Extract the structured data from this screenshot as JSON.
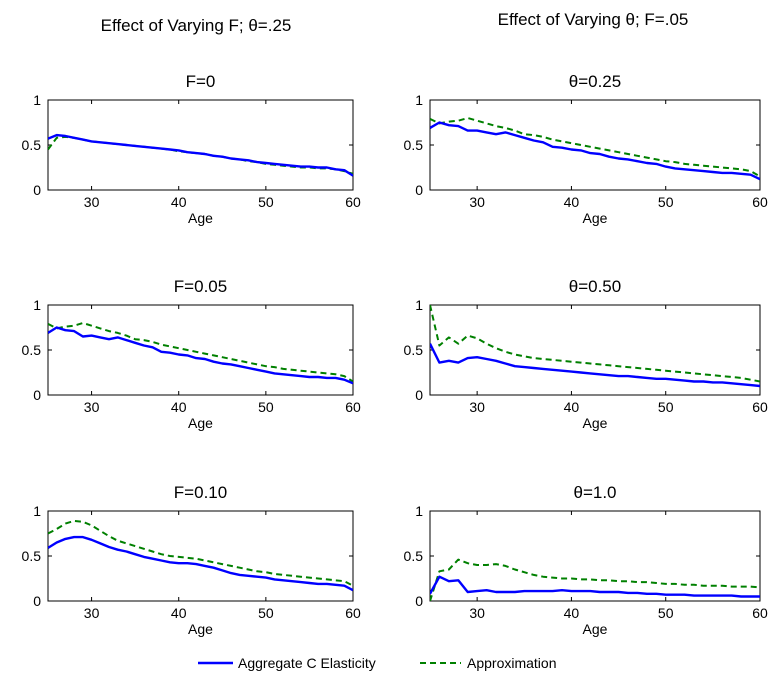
{
  "column_titles": [
    "Effect of Varying F; θ=.25",
    "Effect of Varying θ; F=.05"
  ],
  "legend": {
    "series": [
      {
        "name": "Aggregate C Elasticity",
        "color": "#0000ff",
        "dash": "solid"
      },
      {
        "name": "Approximation",
        "color": "#008000",
        "dash": "dashed"
      }
    ],
    "placement": "bottom-center"
  },
  "chart_data": [
    {
      "type": "line",
      "title": "F=0",
      "xlabel": "Age",
      "ylabel": "",
      "xlim": [
        25,
        60
      ],
      "ylim": [
        0,
        1
      ],
      "xticks": [
        "30",
        "40",
        "50",
        "60"
      ],
      "yticks": [
        "0",
        "0.5",
        "1"
      ],
      "x": [
        25,
        26,
        27,
        28,
        29,
        30,
        31,
        32,
        33,
        34,
        35,
        36,
        37,
        38,
        39,
        40,
        41,
        42,
        43,
        44,
        45,
        46,
        47,
        48,
        49,
        50,
        51,
        52,
        53,
        54,
        55,
        56,
        57,
        58,
        59,
        60
      ],
      "series": [
        {
          "name": "Aggregate C Elasticity",
          "values": [
            0.57,
            0.61,
            0.6,
            0.58,
            0.56,
            0.54,
            0.53,
            0.52,
            0.51,
            0.5,
            0.49,
            0.48,
            0.47,
            0.46,
            0.45,
            0.44,
            0.42,
            0.41,
            0.4,
            0.38,
            0.37,
            0.35,
            0.34,
            0.33,
            0.31,
            0.3,
            0.29,
            0.28,
            0.27,
            0.26,
            0.26,
            0.25,
            0.25,
            0.23,
            0.22,
            0.16
          ]
        },
        {
          "name": "Approximation",
          "values": [
            0.45,
            0.58,
            0.59,
            0.58,
            0.56,
            0.54,
            0.53,
            0.52,
            0.51,
            0.5,
            0.49,
            0.48,
            0.47,
            0.46,
            0.45,
            0.43,
            0.42,
            0.41,
            0.4,
            0.38,
            0.37,
            0.35,
            0.34,
            0.32,
            0.31,
            0.29,
            0.28,
            0.27,
            0.26,
            0.25,
            0.25,
            0.24,
            0.24,
            0.23,
            0.21,
            0.18
          ]
        }
      ]
    },
    {
      "type": "line",
      "title": "θ=0.25",
      "xlabel": "Age",
      "ylabel": "",
      "xlim": [
        25,
        60
      ],
      "ylim": [
        0,
        1
      ],
      "xticks": [
        "30",
        "40",
        "50",
        "60"
      ],
      "yticks": [
        "0",
        "0.5",
        "1"
      ],
      "x": [
        25,
        26,
        27,
        28,
        29,
        30,
        31,
        32,
        33,
        34,
        35,
        36,
        37,
        38,
        39,
        40,
        41,
        42,
        43,
        44,
        45,
        46,
        47,
        48,
        49,
        50,
        51,
        52,
        53,
        54,
        55,
        56,
        57,
        58,
        59,
        60
      ],
      "series": [
        {
          "name": "Aggregate C Elasticity",
          "values": [
            0.69,
            0.75,
            0.72,
            0.71,
            0.66,
            0.66,
            0.64,
            0.62,
            0.64,
            0.61,
            0.58,
            0.55,
            0.53,
            0.48,
            0.47,
            0.45,
            0.44,
            0.41,
            0.4,
            0.37,
            0.35,
            0.34,
            0.32,
            0.3,
            0.29,
            0.26,
            0.24,
            0.23,
            0.22,
            0.21,
            0.2,
            0.19,
            0.19,
            0.18,
            0.17,
            0.12
          ]
        },
        {
          "name": "Approximation",
          "values": [
            0.79,
            0.74,
            0.76,
            0.77,
            0.8,
            0.77,
            0.74,
            0.71,
            0.69,
            0.66,
            0.62,
            0.61,
            0.59,
            0.56,
            0.54,
            0.52,
            0.5,
            0.48,
            0.46,
            0.44,
            0.42,
            0.4,
            0.38,
            0.36,
            0.34,
            0.32,
            0.31,
            0.29,
            0.28,
            0.27,
            0.26,
            0.25,
            0.24,
            0.23,
            0.21,
            0.15
          ]
        }
      ]
    },
    {
      "type": "line",
      "title": "F=0.05",
      "xlabel": "Age",
      "ylabel": "",
      "xlim": [
        25,
        60
      ],
      "ylim": [
        0,
        1
      ],
      "xticks": [
        "30",
        "40",
        "50",
        "60"
      ],
      "yticks": [
        "0",
        "0.5",
        "1"
      ],
      "x": [
        25,
        26,
        27,
        28,
        29,
        30,
        31,
        32,
        33,
        34,
        35,
        36,
        37,
        38,
        39,
        40,
        41,
        42,
        43,
        44,
        45,
        46,
        47,
        48,
        49,
        50,
        51,
        52,
        53,
        54,
        55,
        56,
        57,
        58,
        59,
        60
      ],
      "series": [
        {
          "name": "Aggregate C Elasticity",
          "values": [
            0.69,
            0.75,
            0.72,
            0.71,
            0.65,
            0.66,
            0.64,
            0.62,
            0.64,
            0.61,
            0.58,
            0.55,
            0.53,
            0.48,
            0.47,
            0.45,
            0.44,
            0.41,
            0.4,
            0.37,
            0.35,
            0.34,
            0.32,
            0.3,
            0.28,
            0.26,
            0.24,
            0.23,
            0.22,
            0.21,
            0.2,
            0.2,
            0.19,
            0.19,
            0.17,
            0.13
          ]
        },
        {
          "name": "Approximation",
          "values": [
            0.79,
            0.74,
            0.76,
            0.77,
            0.8,
            0.77,
            0.74,
            0.71,
            0.69,
            0.66,
            0.62,
            0.61,
            0.59,
            0.56,
            0.54,
            0.52,
            0.5,
            0.48,
            0.46,
            0.44,
            0.42,
            0.4,
            0.38,
            0.36,
            0.34,
            0.32,
            0.31,
            0.29,
            0.28,
            0.27,
            0.26,
            0.25,
            0.24,
            0.23,
            0.21,
            0.15
          ]
        }
      ]
    },
    {
      "type": "line",
      "title": "θ=0.50",
      "xlabel": "Age",
      "ylabel": "",
      "xlim": [
        25,
        60
      ],
      "ylim": [
        0,
        1
      ],
      "xticks": [
        "30",
        "40",
        "50",
        "60"
      ],
      "yticks": [
        "0",
        "0.5",
        "1"
      ],
      "x": [
        25,
        26,
        27,
        28,
        29,
        30,
        31,
        32,
        33,
        34,
        35,
        36,
        37,
        38,
        39,
        40,
        41,
        42,
        43,
        44,
        45,
        46,
        47,
        48,
        49,
        50,
        51,
        52,
        53,
        54,
        55,
        56,
        57,
        58,
        59,
        60
      ],
      "series": [
        {
          "name": "Aggregate C Elasticity",
          "values": [
            0.57,
            0.36,
            0.38,
            0.36,
            0.41,
            0.42,
            0.4,
            0.38,
            0.35,
            0.32,
            0.31,
            0.3,
            0.29,
            0.28,
            0.27,
            0.26,
            0.25,
            0.24,
            0.23,
            0.22,
            0.21,
            0.21,
            0.2,
            0.19,
            0.18,
            0.18,
            0.17,
            0.16,
            0.15,
            0.15,
            0.14,
            0.14,
            0.13,
            0.12,
            0.11,
            0.1
          ]
        },
        {
          "name": "Approximation",
          "values": [
            1.0,
            0.55,
            0.64,
            0.57,
            0.66,
            0.63,
            0.57,
            0.52,
            0.48,
            0.45,
            0.43,
            0.41,
            0.4,
            0.39,
            0.38,
            0.37,
            0.36,
            0.35,
            0.34,
            0.33,
            0.32,
            0.31,
            0.3,
            0.29,
            0.28,
            0.27,
            0.26,
            0.25,
            0.24,
            0.23,
            0.22,
            0.21,
            0.2,
            0.19,
            0.17,
            0.15
          ]
        }
      ]
    },
    {
      "type": "line",
      "title": "F=0.10",
      "xlabel": "Age",
      "ylabel": "",
      "xlim": [
        25,
        60
      ],
      "ylim": [
        0,
        1
      ],
      "xticks": [
        "30",
        "40",
        "50",
        "60"
      ],
      "yticks": [
        "0",
        "0.5",
        "1"
      ],
      "x": [
        25,
        26,
        27,
        28,
        29,
        30,
        31,
        32,
        33,
        34,
        35,
        36,
        37,
        38,
        39,
        40,
        41,
        42,
        43,
        44,
        45,
        46,
        47,
        48,
        49,
        50,
        51,
        52,
        53,
        54,
        55,
        56,
        57,
        58,
        59,
        60
      ],
      "series": [
        {
          "name": "Aggregate C Elasticity",
          "values": [
            0.59,
            0.65,
            0.69,
            0.71,
            0.71,
            0.68,
            0.64,
            0.6,
            0.57,
            0.55,
            0.52,
            0.49,
            0.47,
            0.45,
            0.43,
            0.42,
            0.42,
            0.41,
            0.39,
            0.37,
            0.34,
            0.31,
            0.29,
            0.28,
            0.27,
            0.26,
            0.24,
            0.23,
            0.22,
            0.21,
            0.2,
            0.19,
            0.19,
            0.18,
            0.17,
            0.12
          ]
        },
        {
          "name": "Approximation",
          "values": [
            0.75,
            0.8,
            0.86,
            0.89,
            0.88,
            0.84,
            0.78,
            0.72,
            0.67,
            0.64,
            0.61,
            0.58,
            0.55,
            0.52,
            0.5,
            0.49,
            0.48,
            0.47,
            0.45,
            0.43,
            0.41,
            0.39,
            0.37,
            0.35,
            0.33,
            0.32,
            0.3,
            0.29,
            0.28,
            0.27,
            0.26,
            0.25,
            0.24,
            0.23,
            0.22,
            0.17
          ]
        }
      ]
    },
    {
      "type": "line",
      "title": "θ=1.0",
      "xlabel": "Age",
      "ylabel": "",
      "xlim": [
        25,
        60
      ],
      "ylim": [
        0,
        1
      ],
      "xticks": [
        "30",
        "40",
        "50",
        "60"
      ],
      "yticks": [
        "0",
        "0.5",
        "1"
      ],
      "x": [
        25,
        26,
        27,
        28,
        29,
        30,
        31,
        32,
        33,
        34,
        35,
        36,
        37,
        38,
        39,
        40,
        41,
        42,
        43,
        44,
        45,
        46,
        47,
        48,
        49,
        50,
        51,
        52,
        53,
        54,
        55,
        56,
        57,
        58,
        59,
        60
      ],
      "series": [
        {
          "name": "Aggregate C Elasticity",
          "values": [
            0.08,
            0.27,
            0.22,
            0.23,
            0.1,
            0.11,
            0.12,
            0.1,
            0.1,
            0.1,
            0.11,
            0.11,
            0.11,
            0.11,
            0.12,
            0.11,
            0.11,
            0.11,
            0.1,
            0.1,
            0.1,
            0.09,
            0.09,
            0.08,
            0.08,
            0.07,
            0.07,
            0.07,
            0.06,
            0.06,
            0.06,
            0.06,
            0.06,
            0.05,
            0.05,
            0.05
          ]
        },
        {
          "name": "Approximation",
          "values": [
            0.0,
            0.33,
            0.35,
            0.46,
            0.42,
            0.4,
            0.4,
            0.41,
            0.39,
            0.35,
            0.32,
            0.29,
            0.27,
            0.26,
            0.25,
            0.25,
            0.24,
            0.24,
            0.23,
            0.23,
            0.22,
            0.22,
            0.21,
            0.21,
            0.2,
            0.19,
            0.19,
            0.18,
            0.18,
            0.17,
            0.17,
            0.17,
            0.16,
            0.16,
            0.16,
            0.15
          ]
        }
      ]
    }
  ]
}
